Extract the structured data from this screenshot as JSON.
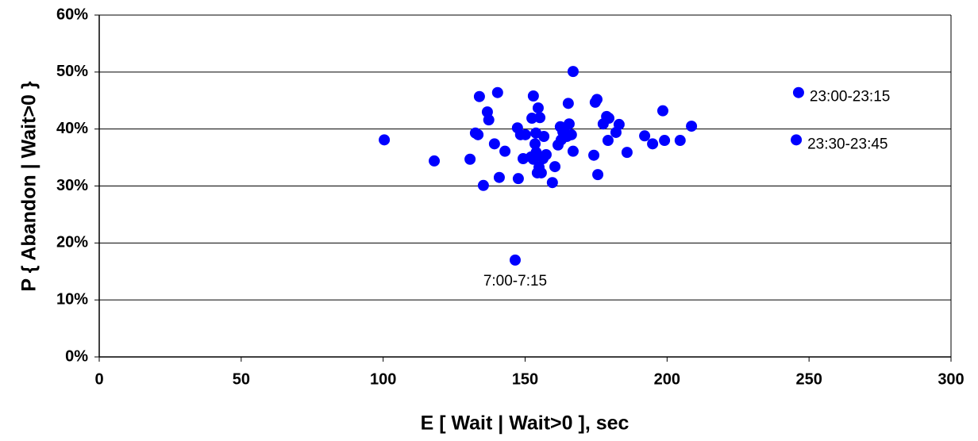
{
  "chart_data": {
    "type": "scatter",
    "x_label": "E [ Wait |  Wait>0 ], sec",
    "y_label": "P { Abandon | Wait>0 }",
    "color": "#0000ff",
    "grid": true,
    "xlim": [
      0,
      300
    ],
    "xticks": [
      0,
      50,
      100,
      150,
      200,
      250,
      300
    ],
    "ylim": [
      0,
      60
    ],
    "yticks": [
      {
        "value": 0,
        "label": "0%"
      },
      {
        "value": 10,
        "label": "10%"
      },
      {
        "value": 20,
        "label": "20%"
      },
      {
        "value": 30,
        "label": "30%"
      },
      {
        "value": 40,
        "label": "40%"
      },
      {
        "value": 50,
        "label": "50%"
      },
      {
        "value": 60,
        "label": "60%"
      }
    ],
    "x": [
      100.4,
      118.0,
      130.6,
      132.5,
      133.4,
      133.9,
      136.7,
      137.2,
      135.3,
      139.2,
      140.3,
      140.9,
      142.9,
      146.5,
      147.3,
      147.6,
      148.4,
      149.3,
      150.1,
      152.4,
      152.9,
      152.9,
      153.5,
      153.8,
      154.6,
      155.2,
      154.3,
      153.9,
      154.9,
      155.7,
      156.3,
      156.6,
      157.4,
      152.1,
      159.6,
      160.5,
      161.6,
      162.4,
      162.7,
      163.3,
      163.8,
      164.7,
      165.2,
      165.5,
      166.3,
      166.9,
      166.9,
      174.2,
      174.7,
      175.3,
      175.6,
      177.5,
      178.7,
      179.5,
      179.2,
      182.0,
      183.1,
      185.9,
      192.1,
      194.9,
      198.5,
      199.1,
      204.6,
      208.6,
      246.3,
      245.5
    ],
    "values": [
      38.1,
      34.4,
      34.7,
      39.3,
      39.0,
      45.7,
      43.0,
      41.6,
      30.1,
      37.4,
      46.4,
      31.5,
      36.1,
      17.0,
      40.2,
      31.3,
      39.0,
      34.8,
      39.0,
      41.9,
      45.8,
      34.7,
      37.4,
      39.3,
      43.7,
      42.0,
      32.3,
      35.9,
      33.3,
      32.3,
      34.8,
      38.7,
      35.5,
      35.1,
      30.6,
      33.4,
      37.2,
      40.4,
      38.1,
      39.5,
      40.2,
      38.7,
      44.5,
      40.9,
      39.0,
      50.1,
      36.1,
      35.4,
      44.7,
      45.2,
      32.0,
      40.9,
      42.2,
      41.9,
      38.0,
      39.4,
      40.8,
      35.9,
      38.8,
      37.4,
      43.2,
      38.0,
      38.0,
      40.5,
      46.4,
      38.1
    ],
    "annotations": [
      {
        "text": "23:00-23:15",
        "x": 246.3,
        "y": 46.4
      },
      {
        "text": "23:30-23:45",
        "x": 245.5,
        "y": 38.1
      },
      {
        "text": "7:00-7:15",
        "x": 146.5,
        "y": 17.0
      }
    ]
  }
}
